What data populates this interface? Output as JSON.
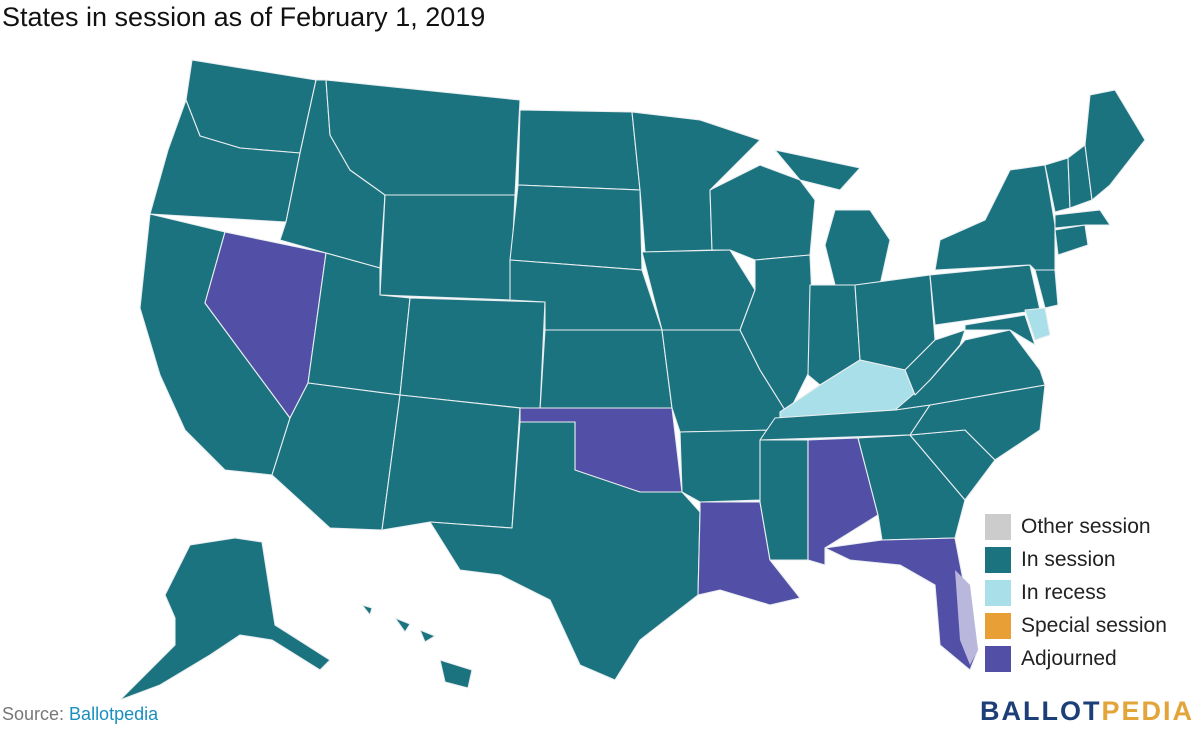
{
  "title": "States in session as of February 1, 2019",
  "colors": {
    "other_session": "#cccccc",
    "in_session": "#1c7380",
    "in_recess": "#a9dfe8",
    "special_session": "#e89f36",
    "adjourned": "#5250a6",
    "florida_keys": "#b9b7dc"
  },
  "legend": [
    {
      "label": "Other session",
      "status": "other_session"
    },
    {
      "label": "In session",
      "status": "in_session"
    },
    {
      "label": "In recess",
      "status": "in_recess"
    },
    {
      "label": "Special session",
      "status": "special_session"
    },
    {
      "label": "Adjourned",
      "status": "adjourned"
    }
  ],
  "state_status": {
    "in_recess": [
      "KY",
      "DE"
    ],
    "adjourned": [
      "NV",
      "OK",
      "LA",
      "AL",
      "FL"
    ]
  },
  "source": {
    "prefix": "Source: ",
    "link": "Ballotpedia"
  },
  "brand": {
    "part1": "BALLOT",
    "part2": "PEDIA"
  }
}
